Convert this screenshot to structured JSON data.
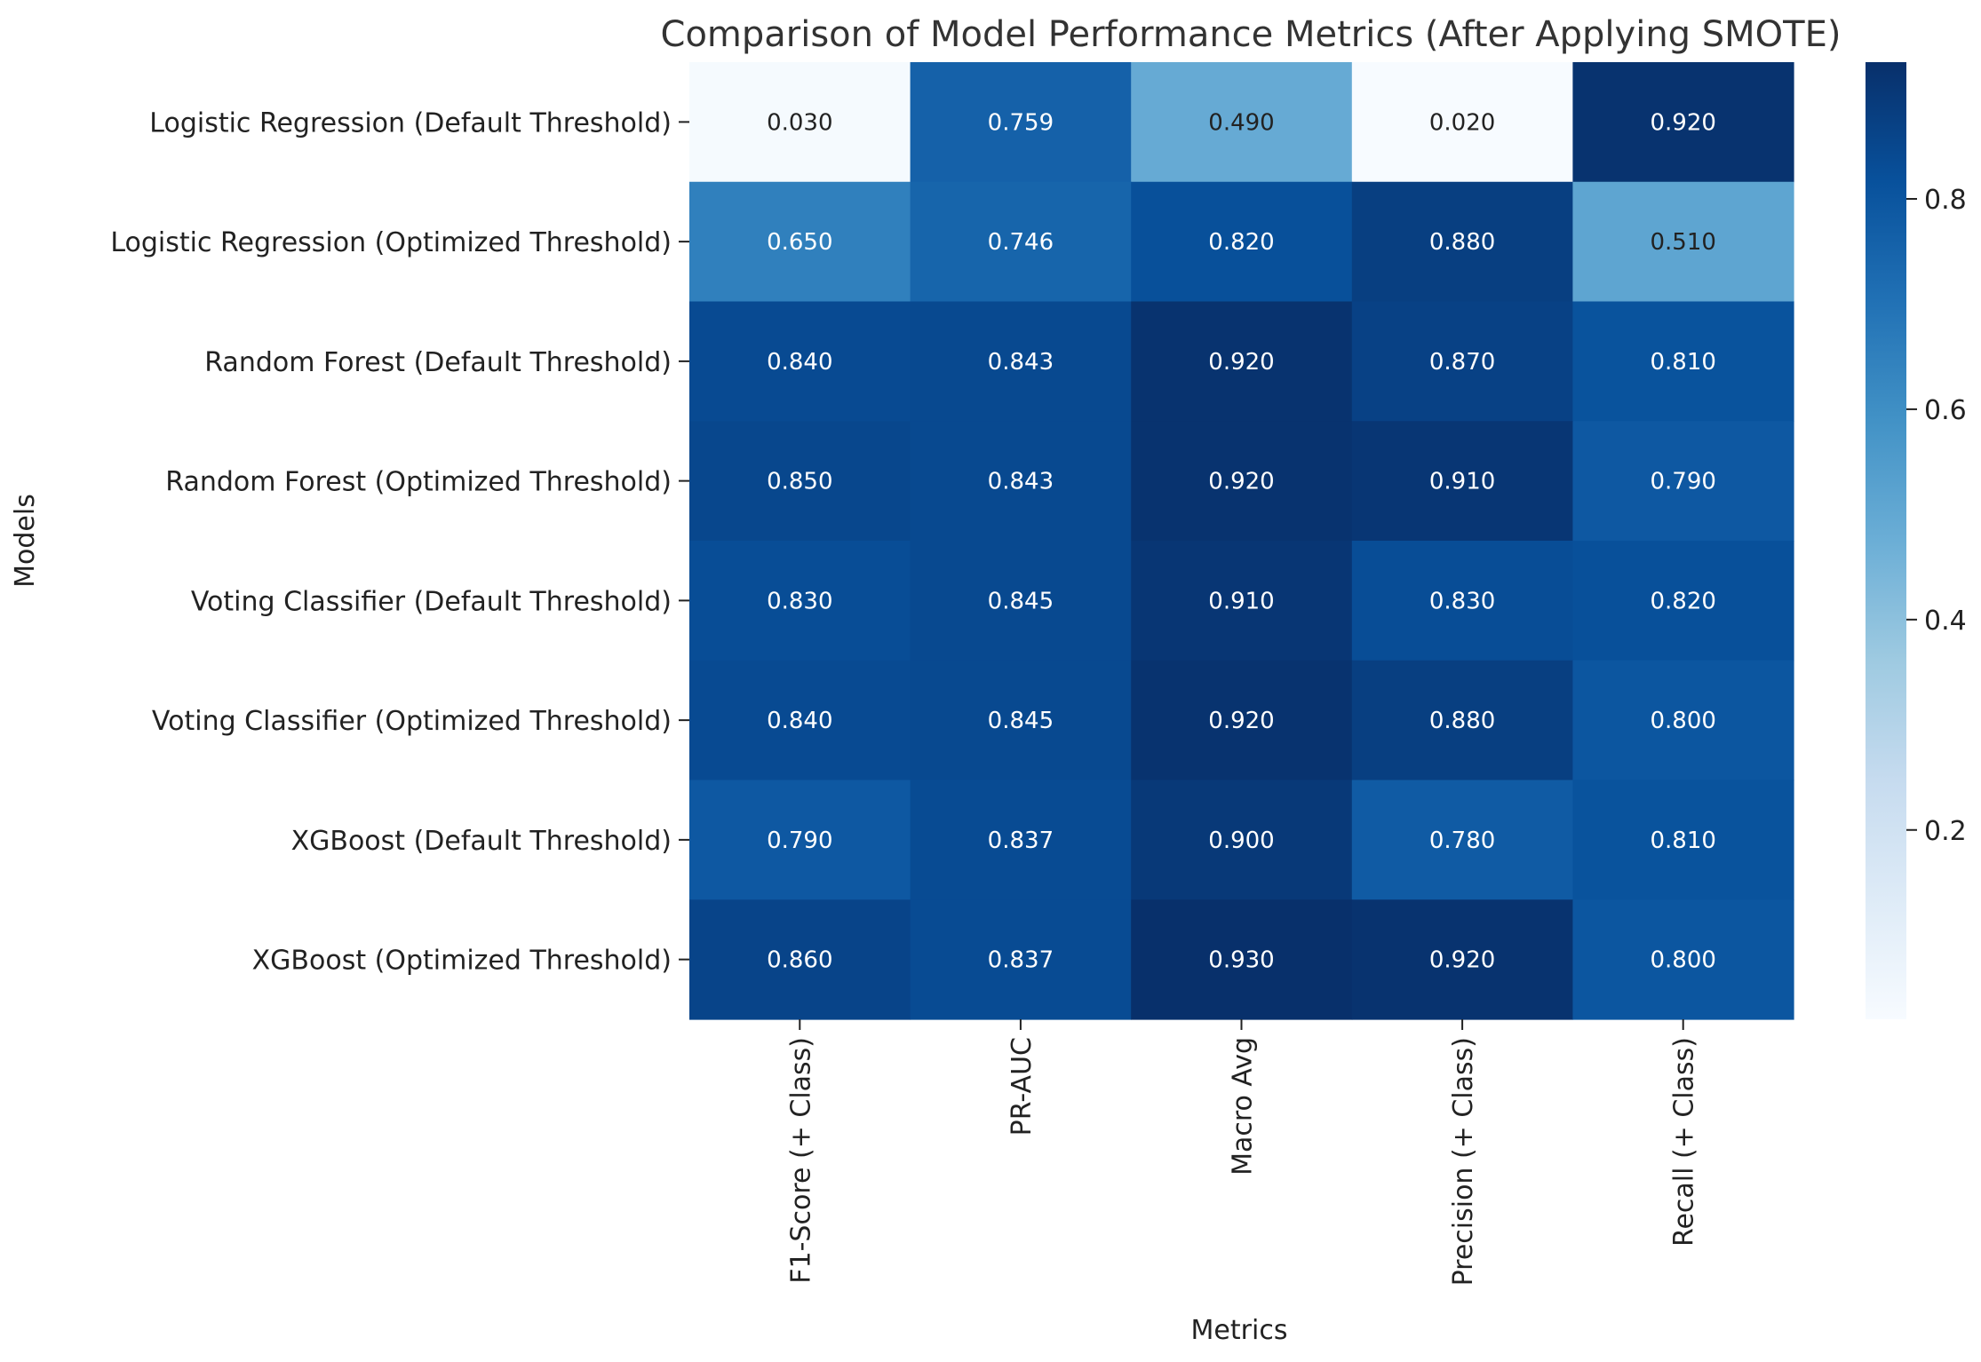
{
  "chart_data": {
    "type": "heatmap",
    "title": "Comparison of Model Performance Metrics (After Applying SMOTE)",
    "xlabel": "Metrics",
    "ylabel": "Models",
    "columns": [
      "F1-Score (+ Class)",
      "PR-AUC",
      "Macro Avg",
      "Precision (+ Class)",
      "Recall (+ Class)"
    ],
    "rows": [
      "Logistic Regression (Default Threshold)",
      "Logistic Regression (Optimized Threshold)",
      "Random Forest (Default Threshold)",
      "Random Forest (Optimized Threshold)",
      "Voting Classifier (Default Threshold)",
      "Voting Classifier (Optimized Threshold)",
      "XGBoost (Default Threshold)",
      "XGBoost (Optimized Threshold)"
    ],
    "values": [
      [
        0.03,
        0.759,
        0.49,
        0.02,
        0.92
      ],
      [
        0.65,
        0.746,
        0.82,
        0.88,
        0.51
      ],
      [
        0.84,
        0.843,
        0.92,
        0.87,
        0.81
      ],
      [
        0.85,
        0.843,
        0.92,
        0.91,
        0.79
      ],
      [
        0.83,
        0.845,
        0.91,
        0.83,
        0.82
      ],
      [
        0.84,
        0.845,
        0.92,
        0.88,
        0.8
      ],
      [
        0.79,
        0.837,
        0.9,
        0.78,
        0.81
      ],
      [
        0.86,
        0.837,
        0.93,
        0.92,
        0.8
      ]
    ],
    "value_format_decimals": 3,
    "colormap": "Blues",
    "colorbar": {
      "min": 0.02,
      "max": 0.93,
      "ticks": [
        0.2,
        0.4,
        0.6,
        0.8
      ],
      "tick_labels": [
        "0.2",
        "0.4",
        "0.6",
        "0.8"
      ]
    },
    "grid": false,
    "legend": "colorbar-right"
  },
  "colors": {
    "blues_stops": [
      "#f7fbff",
      "#deebf7",
      "#c6dbef",
      "#9ecae1",
      "#6baed6",
      "#4292c6",
      "#2171b5",
      "#08519c",
      "#08306b"
    ],
    "text_dark": "#222222",
    "text_light": "#ffffff",
    "title": "#333333"
  }
}
